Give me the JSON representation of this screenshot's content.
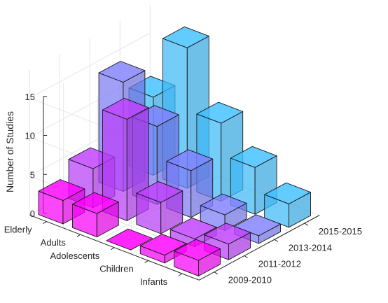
{
  "chart_data": {
    "type": "bar3d",
    "title": "",
    "zlabel": "Number of Studies",
    "zlim": [
      0,
      15
    ],
    "zticks": [
      0,
      5,
      10,
      15
    ],
    "grid": true,
    "age_groups": [
      "Elderly",
      "Adults",
      "Adolescents",
      "Children",
      "Infants"
    ],
    "periods": [
      "2009-2010",
      "2011-2012",
      "2013-2014",
      "2015-2015"
    ],
    "period_colors": [
      "#ff00ff",
      "#bf40ff",
      "#8080ff",
      "#40bfff",
      "#00ffff"
    ],
    "values": {
      "Infants": [
        2,
        2,
        1,
        3
      ],
      "Children": [
        1,
        1,
        2,
        6
      ],
      "Adolescents": [
        0,
        4,
        6,
        10
      ],
      "Adults": [
        3,
        13,
        10,
        18
      ],
      "Elderly": [
        3,
        5,
        14,
        10
      ]
    }
  }
}
